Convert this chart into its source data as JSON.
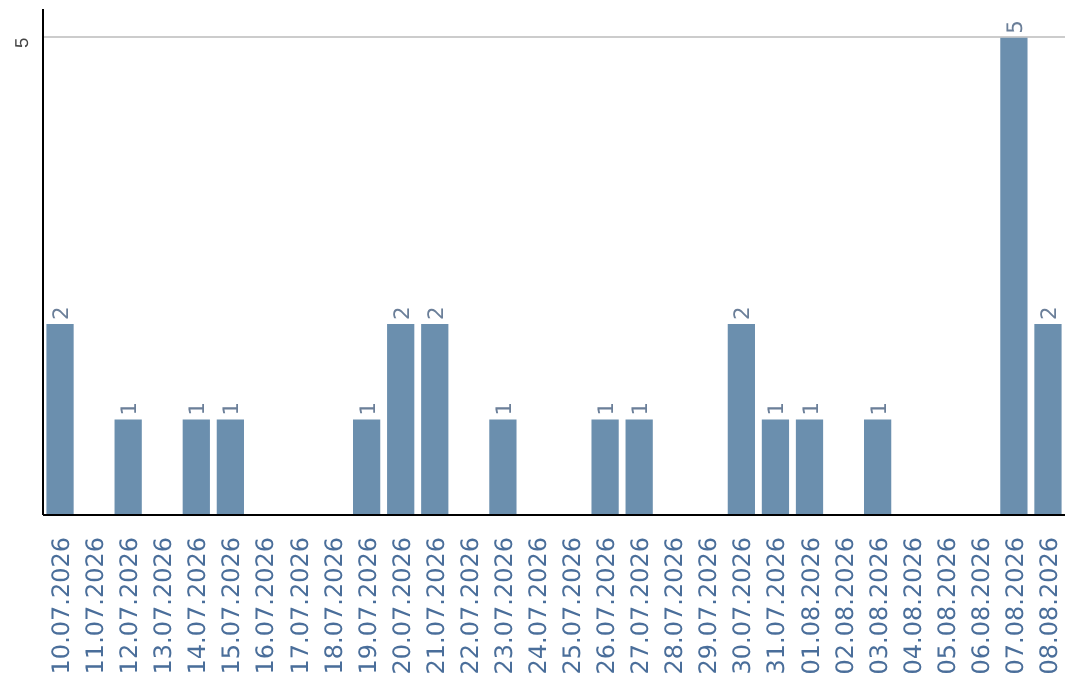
{
  "chart_data": {
    "type": "bar",
    "categories": [
      "10.07.2026",
      "11.07.2026",
      "12.07.2026",
      "13.07.2026",
      "14.07.2026",
      "15.07.2026",
      "16.07.2026",
      "17.07.2026",
      "18.07.2026",
      "19.07.2026",
      "20.07.2026",
      "21.07.2026",
      "22.07.2026",
      "23.07.2026",
      "24.07.2026",
      "25.07.2026",
      "26.07.2026",
      "27.07.2026",
      "28.07.2026",
      "29.07.2026",
      "30.07.2026",
      "31.07.2026",
      "01.08.2026",
      "02.08.2026",
      "03.08.2026",
      "04.08.2026",
      "05.08.2026",
      "06.08.2026",
      "07.08.2026",
      "08.08.2026"
    ],
    "values": [
      2,
      0,
      1,
      0,
      1,
      1,
      0,
      0,
      0,
      1,
      2,
      2,
      0,
      1,
      0,
      0,
      1,
      1,
      0,
      0,
      2,
      1,
      1,
      0,
      1,
      0,
      0,
      0,
      5,
      2
    ],
    "value_labels": [
      "2",
      null,
      "1",
      null,
      "1",
      "1",
      null,
      null,
      null,
      "1",
      "2",
      "2",
      null,
      "1",
      null,
      null,
      "1",
      "1",
      null,
      null,
      "2",
      "1",
      "1",
      null,
      "1",
      null,
      null,
      null,
      "5",
      "2"
    ],
    "color": "#6b8fae",
    "ylim": [
      0,
      5.3
    ],
    "yticks": [
      5
    ],
    "grid": "y"
  }
}
